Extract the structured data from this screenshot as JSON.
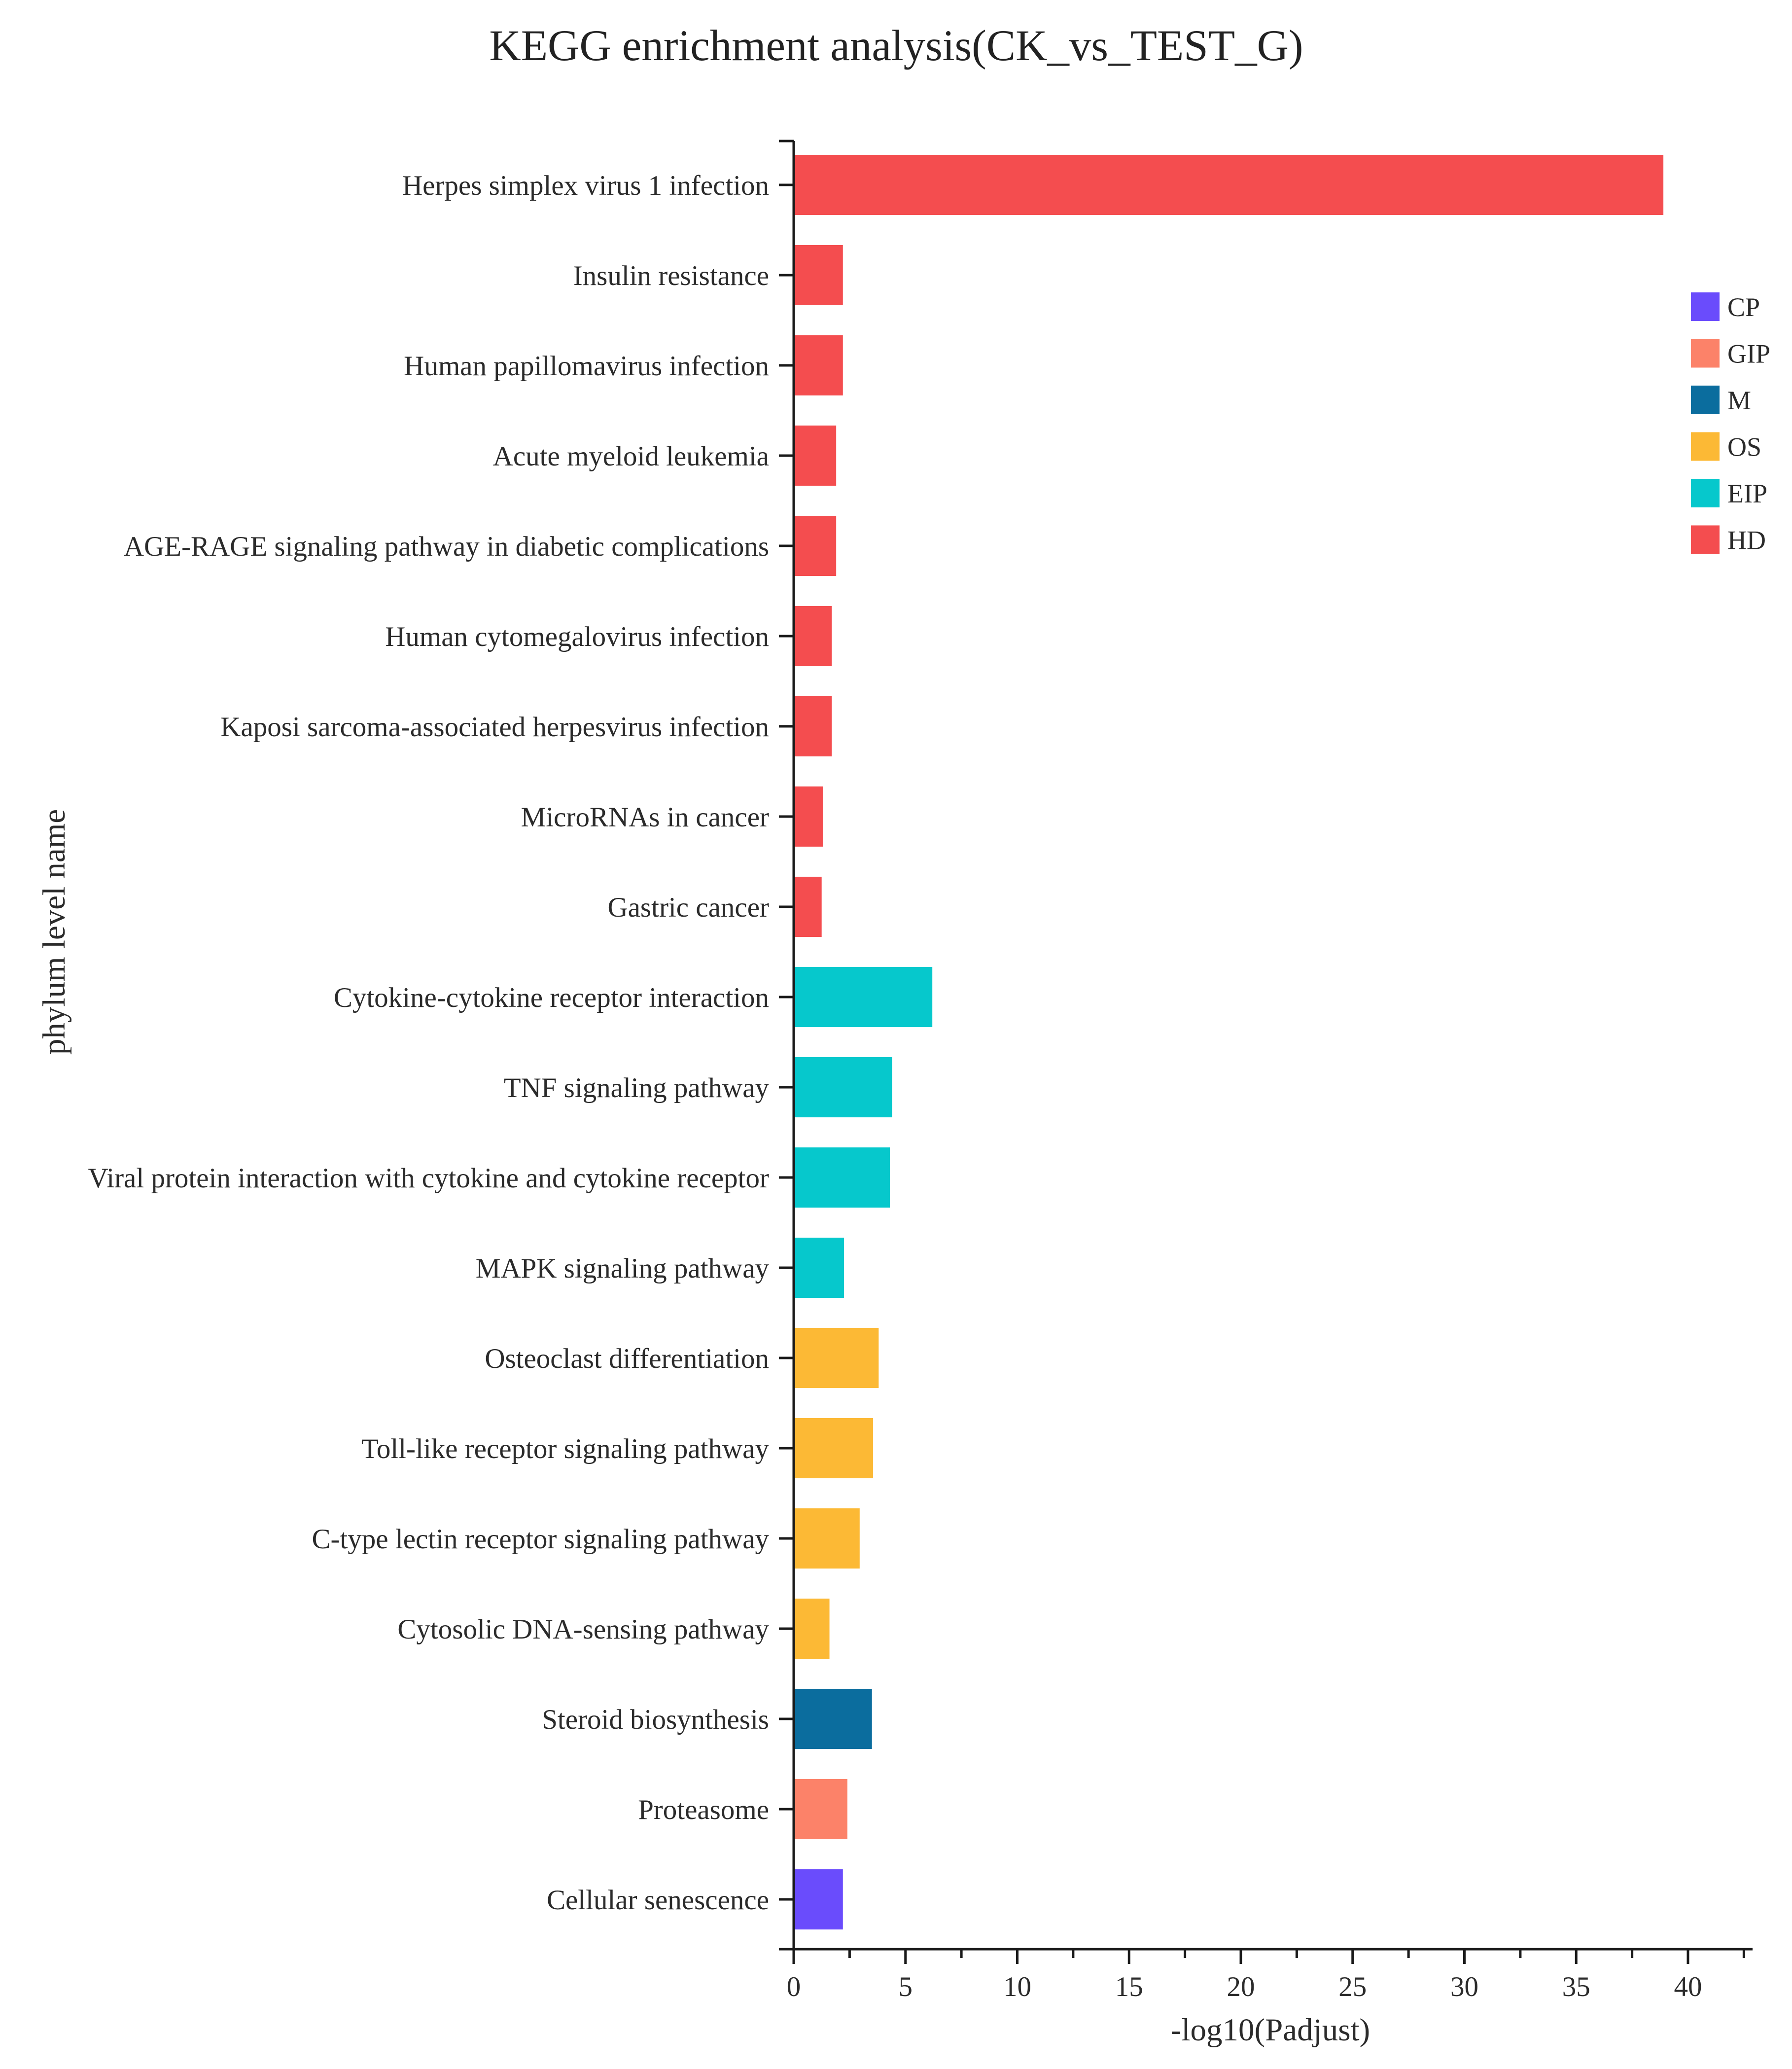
{
  "chart_data": {
    "type": "bar",
    "orientation": "horizontal",
    "title": "KEGG enrichment analysis(CK_vs_TEST_G)",
    "xlabel": "-log10(Padjust)",
    "ylabel": "phylum level name",
    "xlim": [
      0,
      43
    ],
    "xticks": [
      0,
      5,
      10,
      15,
      20,
      25,
      30,
      35,
      40
    ],
    "legend_position": "right",
    "legend": [
      {
        "label": "CP",
        "color": "#6a4cfc"
      },
      {
        "label": "GIP",
        "color": "#fc8269"
      },
      {
        "label": "M",
        "color": "#0b6d9e"
      },
      {
        "label": "OS",
        "color": "#fcb935"
      },
      {
        "label": "EIP",
        "color": "#06c8cc"
      },
      {
        "label": "HD",
        "color": "#f44d4f"
      }
    ],
    "categories": [
      "Herpes simplex virus 1 infection",
      "Insulin resistance",
      "Human papillomavirus infection",
      "Acute myeloid leukemia",
      "AGE-RAGE signaling pathway in diabetic complications",
      "Human cytomegalovirus infection",
      "Kaposi sarcoma-associated herpesvirus infection",
      "MicroRNAs in cancer",
      "Gastric cancer",
      "Cytokine-cytokine receptor interaction",
      "TNF signaling pathway",
      "Viral protein interaction with cytokine and cytokine receptor",
      "MAPK signaling pathway",
      "Osteoclast differentiation",
      "Toll-like receptor signaling pathway",
      "C-type lectin receptor signaling pathway",
      "Cytosolic DNA-sensing pathway",
      "Steroid biosynthesis",
      "Proteasome",
      "Cellular senescence"
    ],
    "values": [
      38.9,
      2.2,
      2.2,
      1.9,
      1.9,
      1.7,
      1.7,
      1.3,
      1.25,
      6.2,
      4.4,
      4.3,
      2.25,
      3.8,
      3.55,
      2.95,
      1.6,
      3.5,
      2.4,
      2.2
    ],
    "groups": [
      "HD",
      "HD",
      "HD",
      "HD",
      "HD",
      "HD",
      "HD",
      "HD",
      "HD",
      "EIP",
      "EIP",
      "EIP",
      "EIP",
      "OS",
      "OS",
      "OS",
      "OS",
      "M",
      "GIP",
      "CP"
    ]
  }
}
